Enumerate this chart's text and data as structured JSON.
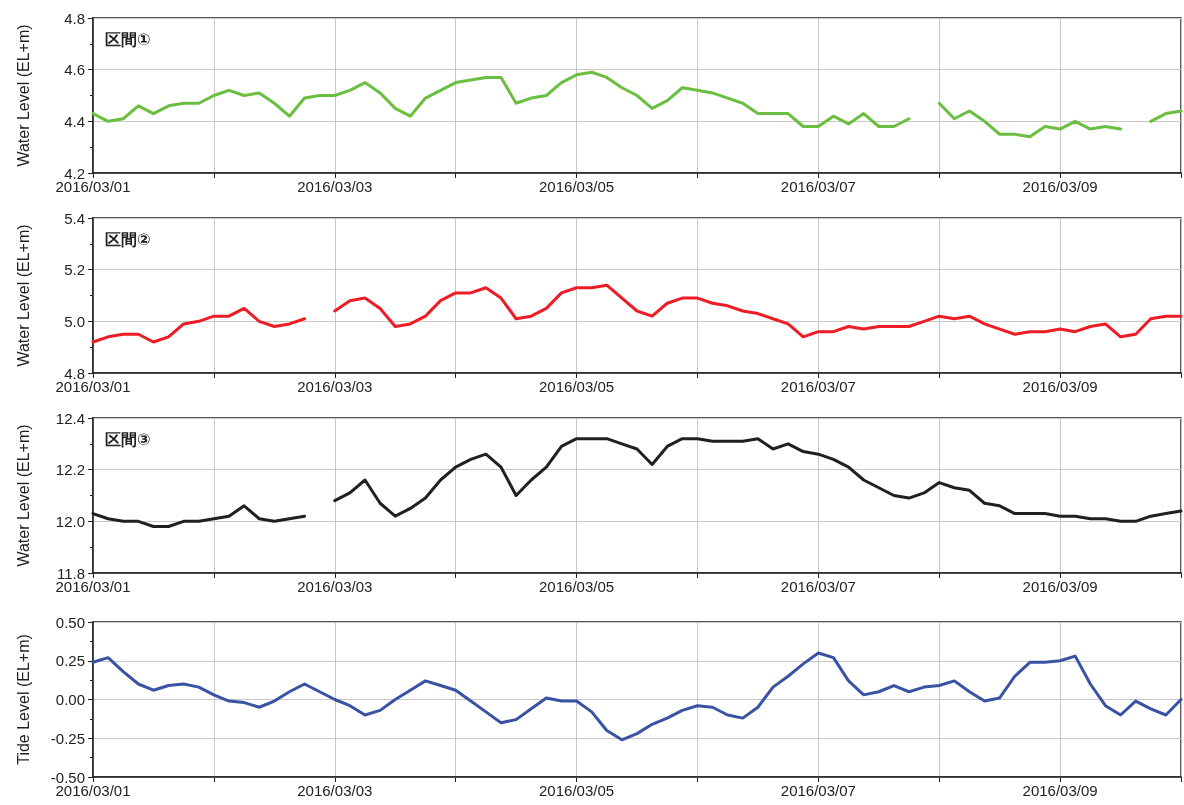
{
  "chart_data": [
    {
      "type": "line",
      "title": "区間①",
      "ylabel": "Water Level (EL+m)",
      "grid": true,
      "marker": "none",
      "line_style": "solid",
      "x": [
        "2016-03-01T00:00",
        "2016-03-01T03:00",
        "2016-03-01T06:00",
        "2016-03-01T09:00",
        "2016-03-01T12:00",
        "2016-03-01T15:00",
        "2016-03-01T18:00",
        "2016-03-01T21:00",
        "2016-03-02T00:00",
        "2016-03-02T03:00",
        "2016-03-02T06:00",
        "2016-03-02T09:00",
        "2016-03-02T12:00",
        "2016-03-02T15:00",
        "2016-03-02T18:00",
        "2016-03-02T21:00",
        "2016-03-03T00:00",
        "2016-03-03T03:00",
        "2016-03-03T06:00",
        "2016-03-03T09:00",
        "2016-03-03T12:00",
        "2016-03-03T15:00",
        "2016-03-03T18:00",
        "2016-03-03T21:00",
        "2016-03-04T00:00",
        "2016-03-04T03:00",
        "2016-03-04T06:00",
        "2016-03-04T09:00",
        "2016-03-04T12:00",
        "2016-03-04T15:00",
        "2016-03-04T18:00",
        "2016-03-04T21:00",
        "2016-03-05T00:00",
        "2016-03-05T03:00",
        "2016-03-05T06:00",
        "2016-03-05T09:00",
        "2016-03-05T12:00",
        "2016-03-05T15:00",
        "2016-03-05T18:00",
        "2016-03-05T21:00",
        "2016-03-06T00:00",
        "2016-03-06T03:00",
        "2016-03-06T06:00",
        "2016-03-06T09:00",
        "2016-03-06T12:00",
        "2016-03-06T15:00",
        "2016-03-06T18:00",
        "2016-03-06T21:00",
        "2016-03-07T00:00",
        "2016-03-07T03:00",
        "2016-03-07T06:00",
        "2016-03-07T09:00",
        "2016-03-07T12:00",
        "2016-03-07T15:00",
        "2016-03-07T18:00",
        "2016-03-07T21:00",
        "2016-03-08T00:00",
        "2016-03-08T03:00",
        "2016-03-08T06:00",
        "2016-03-08T09:00",
        "2016-03-08T12:00",
        "2016-03-08T15:00",
        "2016-03-08T18:00",
        "2016-03-08T21:00",
        "2016-03-09T00:00",
        "2016-03-09T03:00",
        "2016-03-09T06:00",
        "2016-03-09T09:00",
        "2016-03-09T12:00",
        "2016-03-09T15:00",
        "2016-03-09T18:00",
        "2016-03-09T21:00",
        "2016-03-10T00:00"
      ],
      "series": [
        {
          "color": "#6abf40",
          "values": [
            4.43,
            4.4,
            4.41,
            4.46,
            4.43,
            4.46,
            4.47,
            4.47,
            4.5,
            4.52,
            4.5,
            4.51,
            4.47,
            4.42,
            4.49,
            4.5,
            4.5,
            4.52,
            4.55,
            4.51,
            4.45,
            4.42,
            4.49,
            4.52,
            4.55,
            4.56,
            4.57,
            4.57,
            4.47,
            4.49,
            4.5,
            4.55,
            4.58,
            4.59,
            4.57,
            4.53,
            4.5,
            4.45,
            4.48,
            4.53,
            4.52,
            4.51,
            4.49,
            4.47,
            4.43,
            4.43,
            4.43,
            4.38,
            4.38,
            4.42,
            4.39,
            4.43,
            4.38,
            4.38,
            4.41,
            null,
            4.47,
            4.41,
            4.44,
            4.4,
            4.35,
            4.35,
            4.34,
            4.38,
            4.37,
            4.4,
            4.37,
            4.38,
            4.37,
            null,
            4.4,
            4.43,
            4.44
          ]
        }
      ],
      "xlim": [
        "2016-03-01",
        "2016-03-10"
      ],
      "xticks": [
        {
          "value": "2016-03-01",
          "label": "2016/03/01"
        },
        {
          "value": "2016-03-02",
          "label": null
        },
        {
          "value": "2016-03-03",
          "label": "2016/03/03"
        },
        {
          "value": "2016-03-04",
          "label": null
        },
        {
          "value": "2016-03-05",
          "label": "2016/03/05"
        },
        {
          "value": "2016-03-06",
          "label": null
        },
        {
          "value": "2016-03-07",
          "label": "2016/03/07"
        },
        {
          "value": "2016-03-08",
          "label": null
        },
        {
          "value": "2016-03-09",
          "label": "2016/03/09"
        },
        {
          "value": "2016-03-10",
          "label": null
        }
      ],
      "ylim": [
        4.2,
        4.8
      ],
      "yticks": [
        4.2,
        4.4,
        4.6,
        4.8
      ]
    },
    {
      "type": "line",
      "title": "区間②",
      "ylabel": "Water Level (EL+m)",
      "grid": true,
      "marker": "none",
      "line_style": "solid",
      "x": [
        "2016-03-01T00:00",
        "2016-03-01T03:00",
        "2016-03-01T06:00",
        "2016-03-01T09:00",
        "2016-03-01T12:00",
        "2016-03-01T15:00",
        "2016-03-01T18:00",
        "2016-03-01T21:00",
        "2016-03-02T00:00",
        "2016-03-02T03:00",
        "2016-03-02T06:00",
        "2016-03-02T09:00",
        "2016-03-02T12:00",
        "2016-03-02T15:00",
        "2016-03-02T18:00",
        "2016-03-02T21:00",
        "2016-03-03T00:00",
        "2016-03-03T03:00",
        "2016-03-03T06:00",
        "2016-03-03T09:00",
        "2016-03-03T12:00",
        "2016-03-03T15:00",
        "2016-03-03T18:00",
        "2016-03-03T21:00",
        "2016-03-04T00:00",
        "2016-03-04T03:00",
        "2016-03-04T06:00",
        "2016-03-04T09:00",
        "2016-03-04T12:00",
        "2016-03-04T15:00",
        "2016-03-04T18:00",
        "2016-03-04T21:00",
        "2016-03-05T00:00",
        "2016-03-05T03:00",
        "2016-03-05T06:00",
        "2016-03-05T09:00",
        "2016-03-05T12:00",
        "2016-03-05T15:00",
        "2016-03-05T18:00",
        "2016-03-05T21:00",
        "2016-03-06T00:00",
        "2016-03-06T03:00",
        "2016-03-06T06:00",
        "2016-03-06T09:00",
        "2016-03-06T12:00",
        "2016-03-06T15:00",
        "2016-03-06T18:00",
        "2016-03-06T21:00",
        "2016-03-07T00:00",
        "2016-03-07T03:00",
        "2016-03-07T06:00",
        "2016-03-07T09:00",
        "2016-03-07T12:00",
        "2016-03-07T15:00",
        "2016-03-07T18:00",
        "2016-03-07T21:00",
        "2016-03-08T00:00",
        "2016-03-08T03:00",
        "2016-03-08T06:00",
        "2016-03-08T09:00",
        "2016-03-08T12:00",
        "2016-03-08T15:00",
        "2016-03-08T18:00",
        "2016-03-08T21:00",
        "2016-03-09T00:00",
        "2016-03-09T03:00",
        "2016-03-09T06:00",
        "2016-03-09T09:00",
        "2016-03-09T12:00",
        "2016-03-09T15:00",
        "2016-03-09T18:00",
        "2016-03-09T21:00",
        "2016-03-10T00:00"
      ],
      "series": [
        {
          "color": "#ee1c25",
          "values": [
            4.92,
            4.94,
            4.95,
            4.95,
            4.92,
            4.94,
            4.99,
            5.0,
            5.02,
            5.02,
            5.05,
            5.0,
            4.98,
            4.99,
            5.01,
            null,
            5.04,
            5.08,
            5.09,
            5.05,
            4.98,
            4.99,
            5.02,
            5.08,
            5.11,
            5.11,
            5.13,
            5.09,
            5.01,
            5.02,
            5.05,
            5.11,
            5.13,
            5.13,
            5.14,
            5.09,
            5.04,
            5.02,
            5.07,
            5.09,
            5.09,
            5.07,
            5.06,
            5.04,
            5.03,
            5.01,
            4.99,
            4.94,
            4.96,
            4.96,
            4.98,
            4.97,
            4.98,
            4.98,
            4.98,
            5.0,
            5.02,
            5.01,
            5.02,
            4.99,
            4.97,
            4.95,
            4.96,
            4.96,
            4.97,
            4.96,
            4.98,
            4.99,
            4.94,
            4.95,
            5.01,
            5.02,
            5.02
          ]
        }
      ],
      "xlim": [
        "2016-03-01",
        "2016-03-10"
      ],
      "xticks": [
        {
          "value": "2016-03-01",
          "label": "2016/03/01"
        },
        {
          "value": "2016-03-02",
          "label": null
        },
        {
          "value": "2016-03-03",
          "label": "2016/03/03"
        },
        {
          "value": "2016-03-04",
          "label": null
        },
        {
          "value": "2016-03-05",
          "label": "2016/03/05"
        },
        {
          "value": "2016-03-06",
          "label": null
        },
        {
          "value": "2016-03-07",
          "label": "2016/03/07"
        },
        {
          "value": "2016-03-08",
          "label": null
        },
        {
          "value": "2016-03-09",
          "label": "2016/03/09"
        },
        {
          "value": "2016-03-10",
          "label": null
        }
      ],
      "ylim": [
        4.8,
        5.4
      ],
      "yticks": [
        4.8,
        {
          "value": 5,
          "label": "5.0"
        },
        5.2,
        5.4
      ]
    },
    {
      "type": "line",
      "title": "区間③",
      "ylabel": "Water Level (EL+m)",
      "grid": true,
      "marker": "none",
      "line_style": "solid",
      "x": [
        "2016-03-01T00:00",
        "2016-03-01T03:00",
        "2016-03-01T06:00",
        "2016-03-01T09:00",
        "2016-03-01T12:00",
        "2016-03-01T15:00",
        "2016-03-01T18:00",
        "2016-03-01T21:00",
        "2016-03-02T00:00",
        "2016-03-02T03:00",
        "2016-03-02T06:00",
        "2016-03-02T09:00",
        "2016-03-02T12:00",
        "2016-03-02T15:00",
        "2016-03-02T18:00",
        "2016-03-02T21:00",
        "2016-03-03T00:00",
        "2016-03-03T03:00",
        "2016-03-03T06:00",
        "2016-03-03T09:00",
        "2016-03-03T12:00",
        "2016-03-03T15:00",
        "2016-03-03T18:00",
        "2016-03-03T21:00",
        "2016-03-04T00:00",
        "2016-03-04T03:00",
        "2016-03-04T06:00",
        "2016-03-04T09:00",
        "2016-03-04T12:00",
        "2016-03-04T15:00",
        "2016-03-04T18:00",
        "2016-03-04T21:00",
        "2016-03-05T00:00",
        "2016-03-05T03:00",
        "2016-03-05T06:00",
        "2016-03-05T09:00",
        "2016-03-05T12:00",
        "2016-03-05T15:00",
        "2016-03-05T18:00",
        "2016-03-05T21:00",
        "2016-03-06T00:00",
        "2016-03-06T03:00",
        "2016-03-06T06:00",
        "2016-03-06T09:00",
        "2016-03-06T12:00",
        "2016-03-06T15:00",
        "2016-03-06T18:00",
        "2016-03-06T21:00",
        "2016-03-07T00:00",
        "2016-03-07T03:00",
        "2016-03-07T06:00",
        "2016-03-07T09:00",
        "2016-03-07T12:00",
        "2016-03-07T15:00",
        "2016-03-07T18:00",
        "2016-03-07T21:00",
        "2016-03-08T00:00",
        "2016-03-08T03:00",
        "2016-03-08T06:00",
        "2016-03-08T09:00",
        "2016-03-08T12:00",
        "2016-03-08T15:00",
        "2016-03-08T18:00",
        "2016-03-08T21:00",
        "2016-03-09T00:00",
        "2016-03-09T03:00",
        "2016-03-09T06:00",
        "2016-03-09T09:00",
        "2016-03-09T12:00",
        "2016-03-09T15:00",
        "2016-03-09T18:00",
        "2016-03-09T21:00",
        "2016-03-10T00:00"
      ],
      "series": [
        {
          "color": "#231f20",
          "values": [
            12.03,
            12.01,
            12.0,
            12.0,
            11.98,
            11.98,
            12.0,
            12.0,
            12.01,
            12.02,
            12.06,
            12.01,
            12.0,
            12.01,
            12.02,
            null,
            12.08,
            12.11,
            12.16,
            12.07,
            12.02,
            12.05,
            12.09,
            12.16,
            12.21,
            12.24,
            12.26,
            12.21,
            12.1,
            12.16,
            12.21,
            12.29,
            12.32,
            12.32,
            12.32,
            12.3,
            12.28,
            12.22,
            12.29,
            12.32,
            12.32,
            12.31,
            12.31,
            12.31,
            12.32,
            12.28,
            12.3,
            12.27,
            12.26,
            12.24,
            12.21,
            12.16,
            12.13,
            12.1,
            12.09,
            12.11,
            12.15,
            12.13,
            12.12,
            12.07,
            12.06,
            12.03,
            12.03,
            12.03,
            12.02,
            12.02,
            12.01,
            12.01,
            12.0,
            12.0,
            12.02,
            12.03,
            12.04
          ]
        }
      ],
      "xlim": [
        "2016-03-01",
        "2016-03-10"
      ],
      "xticks": [
        {
          "value": "2016-03-01",
          "label": "2016/03/01"
        },
        {
          "value": "2016-03-02",
          "label": null
        },
        {
          "value": "2016-03-03",
          "label": "2016/03/03"
        },
        {
          "value": "2016-03-04",
          "label": null
        },
        {
          "value": "2016-03-05",
          "label": "2016/03/05"
        },
        {
          "value": "2016-03-06",
          "label": null
        },
        {
          "value": "2016-03-07",
          "label": "2016/03/07"
        },
        {
          "value": "2016-03-08",
          "label": null
        },
        {
          "value": "2016-03-09",
          "label": "2016/03/09"
        },
        {
          "value": "2016-03-10",
          "label": null
        }
      ],
      "ylim": [
        11.8,
        12.4
      ],
      "yticks": [
        11.8,
        {
          "value": 12,
          "label": "12.0"
        },
        12.2,
        12.4
      ]
    },
    {
      "type": "line",
      "ylabel": "Tide Level (EL+m)",
      "grid": true,
      "marker": "none",
      "line_style": "solid",
      "x": [
        "2016-03-01T00:00",
        "2016-03-01T03:00",
        "2016-03-01T06:00",
        "2016-03-01T09:00",
        "2016-03-01T12:00",
        "2016-03-01T15:00",
        "2016-03-01T18:00",
        "2016-03-01T21:00",
        "2016-03-02T00:00",
        "2016-03-02T03:00",
        "2016-03-02T06:00",
        "2016-03-02T09:00",
        "2016-03-02T12:00",
        "2016-03-02T15:00",
        "2016-03-02T18:00",
        "2016-03-02T21:00",
        "2016-03-03T00:00",
        "2016-03-03T03:00",
        "2016-03-03T06:00",
        "2016-03-03T09:00",
        "2016-03-03T12:00",
        "2016-03-03T15:00",
        "2016-03-03T18:00",
        "2016-03-03T21:00",
        "2016-03-04T00:00",
        "2016-03-04T03:00",
        "2016-03-04T06:00",
        "2016-03-04T09:00",
        "2016-03-04T12:00",
        "2016-03-04T15:00",
        "2016-03-04T18:00",
        "2016-03-04T21:00",
        "2016-03-05T00:00",
        "2016-03-05T03:00",
        "2016-03-05T06:00",
        "2016-03-05T09:00",
        "2016-03-05T12:00",
        "2016-03-05T15:00",
        "2016-03-05T18:00",
        "2016-03-05T21:00",
        "2016-03-06T00:00",
        "2016-03-06T03:00",
        "2016-03-06T06:00",
        "2016-03-06T09:00",
        "2016-03-06T12:00",
        "2016-03-06T15:00",
        "2016-03-06T18:00",
        "2016-03-06T21:00",
        "2016-03-07T00:00",
        "2016-03-07T03:00",
        "2016-03-07T06:00",
        "2016-03-07T09:00",
        "2016-03-07T12:00",
        "2016-03-07T15:00",
        "2016-03-07T18:00",
        "2016-03-07T21:00",
        "2016-03-08T00:00",
        "2016-03-08T03:00",
        "2016-03-08T06:00",
        "2016-03-08T09:00",
        "2016-03-08T12:00",
        "2016-03-08T15:00",
        "2016-03-08T18:00",
        "2016-03-08T21:00",
        "2016-03-09T00:00",
        "2016-03-09T03:00",
        "2016-03-09T06:00",
        "2016-03-09T09:00",
        "2016-03-09T12:00",
        "2016-03-09T15:00",
        "2016-03-09T18:00",
        "2016-03-09T21:00",
        "2016-03-10T00:00"
      ],
      "series": [
        {
          "color": "#3953a4",
          "values": [
            0.24,
            0.27,
            0.18,
            0.1,
            0.06,
            0.09,
            0.1,
            0.08,
            0.03,
            -0.01,
            -0.02,
            -0.05,
            -0.01,
            0.05,
            0.1,
            0.05,
            0.0,
            -0.04,
            -0.1,
            -0.07,
            0.0,
            0.06,
            0.12,
            0.09,
            0.06,
            -0.01,
            -0.08,
            -0.15,
            -0.13,
            -0.06,
            0.01,
            -0.01,
            -0.01,
            -0.08,
            -0.2,
            -0.26,
            -0.22,
            -0.16,
            -0.12,
            -0.07,
            -0.04,
            -0.05,
            -0.1,
            -0.12,
            -0.05,
            0.08,
            0.15,
            0.23,
            0.3,
            0.27,
            0.12,
            0.03,
            0.05,
            0.09,
            0.05,
            0.08,
            0.09,
            0.12,
            0.05,
            -0.01,
            0.01,
            0.15,
            0.24,
            0.24,
            0.25,
            0.28,
            0.1,
            -0.04,
            -0.1,
            -0.01,
            -0.06,
            -0.1,
            0.0
          ]
        }
      ],
      "xlim": [
        "2016-03-01",
        "2016-03-10"
      ],
      "xticks": [
        {
          "value": "2016-03-01",
          "label": "2016/03/01"
        },
        {
          "value": "2016-03-02",
          "label": null
        },
        {
          "value": "2016-03-03",
          "label": "2016/03/03"
        },
        {
          "value": "2016-03-04",
          "label": null
        },
        {
          "value": "2016-03-05",
          "label": "2016/03/05"
        },
        {
          "value": "2016-03-06",
          "label": null
        },
        {
          "value": "2016-03-07",
          "label": "2016/03/07"
        },
        {
          "value": "2016-03-08",
          "label": null
        },
        {
          "value": "2016-03-09",
          "label": "2016/03/09"
        },
        {
          "value": "2016-03-10",
          "label": null
        }
      ],
      "ylim": [
        -0.5,
        0.5
      ],
      "yticks": [
        {
          "value": -0.5,
          "label": "-0.50"
        },
        {
          "value": -0.25,
          "label": "-0.25"
        },
        {
          "value": 0,
          "label": "0.00"
        },
        {
          "value": 0.25,
          "label": "0.25"
        },
        {
          "value": 0.5,
          "label": "0.50"
        }
      ]
    }
  ]
}
